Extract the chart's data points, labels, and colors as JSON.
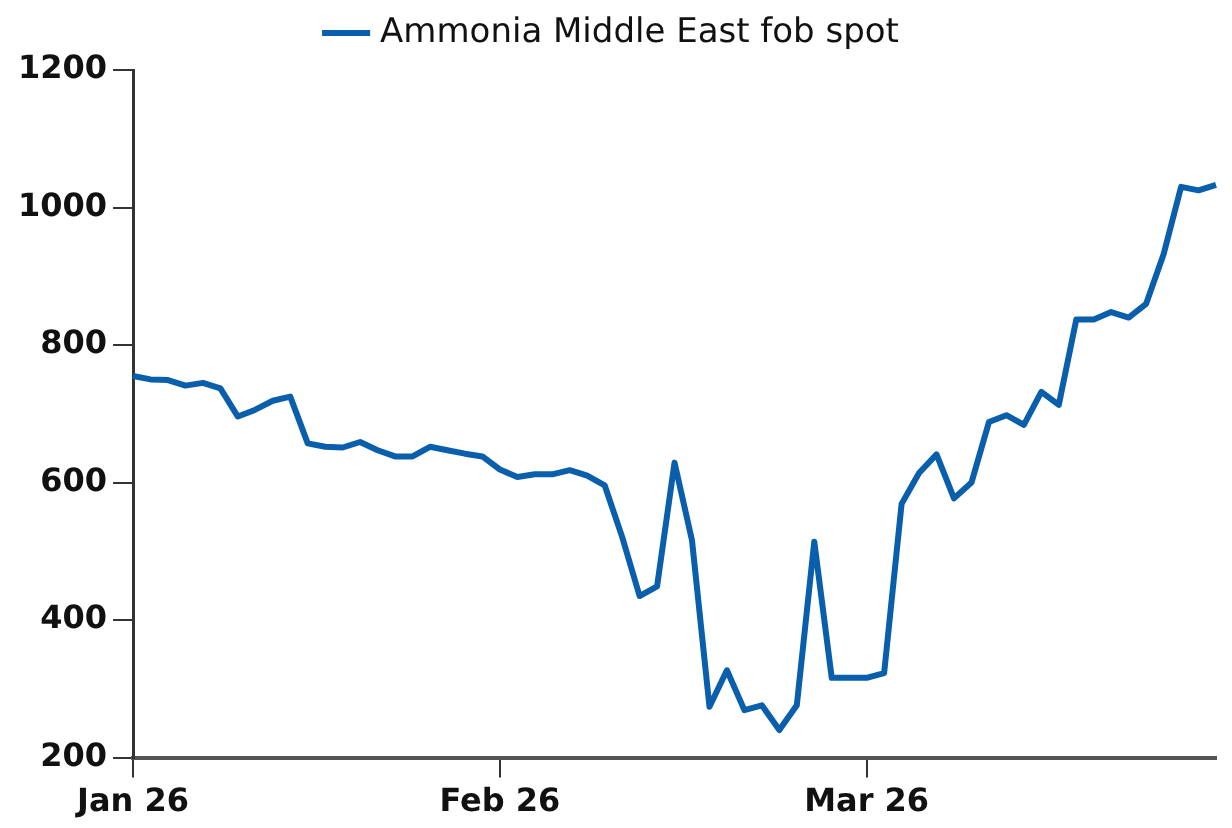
{
  "chart_data": {
    "type": "line",
    "categories": [
      "Jan 26",
      null,
      null,
      null,
      null,
      null,
      null,
      null,
      null,
      null,
      null,
      null,
      null,
      null,
      null,
      null,
      null,
      null,
      null,
      null,
      null,
      "Feb 26",
      null,
      null,
      null,
      null,
      null,
      null,
      null,
      null,
      null,
      null,
      null,
      null,
      null,
      null,
      null,
      null,
      null,
      null,
      null,
      null,
      "Mar 26",
      null,
      null,
      null,
      null,
      null,
      null,
      null,
      null,
      null,
      null,
      null,
      null,
      null,
      null,
      null,
      null,
      null,
      null,
      null,
      null
    ],
    "series": [
      {
        "name": "Ammonia Middle East fob spot",
        "color": "#0a5fad",
        "values": [
          755,
          750,
          749,
          741,
          745,
          737,
          696,
          706,
          719,
          725,
          657,
          652,
          651,
          659,
          647,
          638,
          638,
          652,
          647,
          642,
          638,
          619,
          608,
          612,
          612,
          618,
          610,
          596,
          521,
          435,
          449,
          629,
          516,
          274,
          327,
          269,
          276,
          240,
          276,
          514,
          316,
          316,
          316,
          323,
          569,
          614,
          641,
          577,
          600,
          688,
          698,
          684,
          732,
          713,
          837,
          837,
          848,
          840,
          860,
          932,
          1030,
          1025,
          1033
        ]
      }
    ],
    "ylim": [
      200,
      1200
    ],
    "yticks": [
      200,
      400,
      600,
      800,
      1000,
      1200
    ],
    "grid": false,
    "legend": "top",
    "marker": "none",
    "line_style": "solid"
  }
}
